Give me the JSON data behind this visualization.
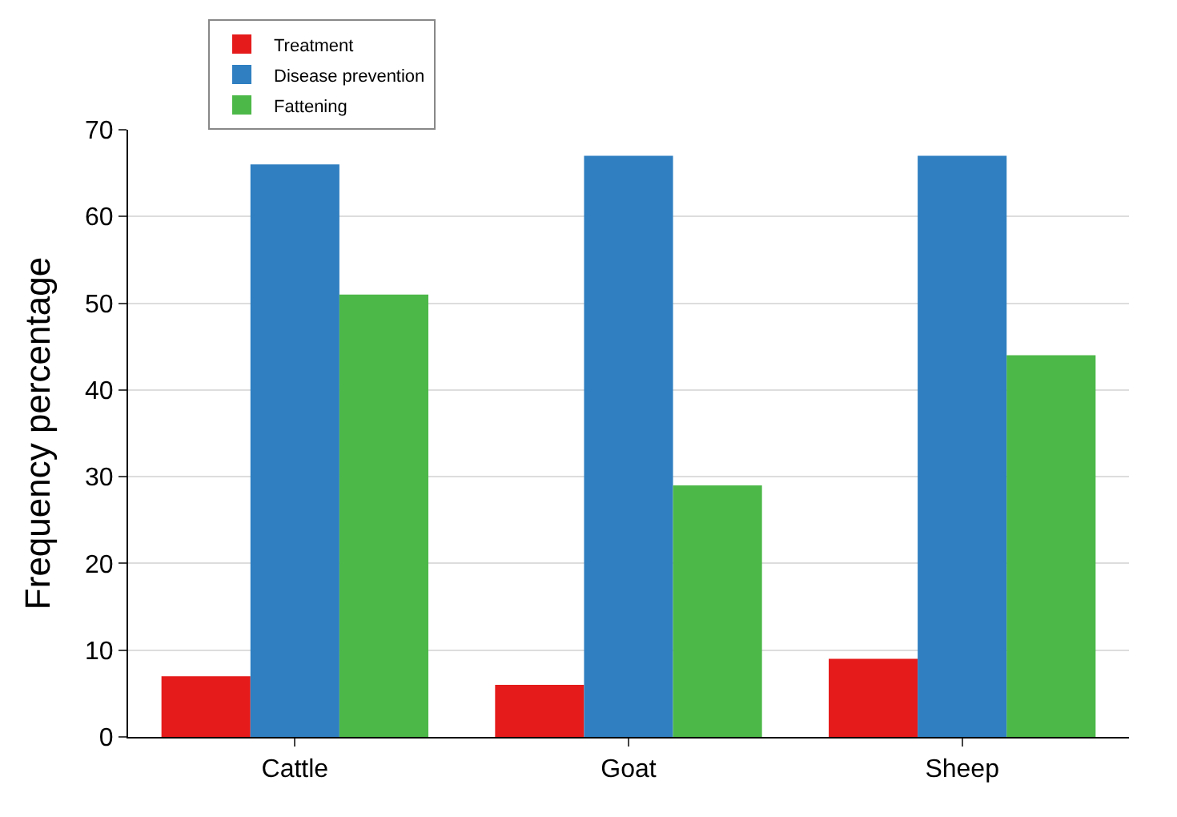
{
  "chart_data": {
    "type": "bar",
    "ylabel": "Frequency percentage",
    "categories": [
      "Cattle",
      "Goat",
      "Sheep"
    ],
    "series": [
      {
        "name": "Treatment",
        "color": "#e51b1b",
        "values": [
          7,
          6,
          9
        ]
      },
      {
        "name": "Disease prevention",
        "color": "#2f7fc1",
        "values": [
          66,
          67,
          67
        ]
      },
      {
        "name": "Fattening",
        "color": "#4cb848",
        "values": [
          51,
          29,
          44
        ]
      }
    ],
    "ylim": [
      0,
      70
    ],
    "yticks": [
      0,
      10,
      20,
      30,
      40,
      50,
      60,
      70
    ],
    "grid": "y",
    "legend": "top left"
  }
}
